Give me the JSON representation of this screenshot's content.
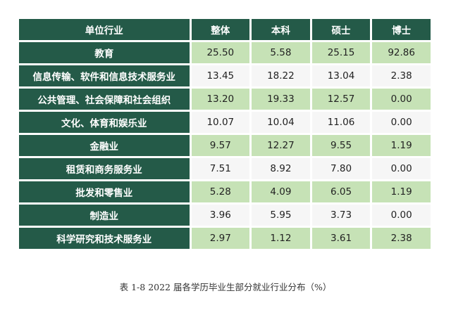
{
  "table": {
    "headers": [
      "单位行业",
      "整体",
      "本科",
      "硕士",
      "博士"
    ],
    "rows": [
      {
        "industry": "教育",
        "values": [
          "25.50",
          "5.58",
          "25.15",
          "92.86"
        ]
      },
      {
        "industry": "信息传输、软件和信息技术服务业",
        "values": [
          "13.45",
          "18.22",
          "13.04",
          "2.38"
        ]
      },
      {
        "industry": "公共管理、社会保障和社会组织",
        "values": [
          "13.20",
          "19.33",
          "12.57",
          "0.00"
        ]
      },
      {
        "industry": "文化、体育和娱乐业",
        "values": [
          "10.07",
          "10.04",
          "11.06",
          "0.00"
        ]
      },
      {
        "industry": "金融业",
        "values": [
          "9.57",
          "12.27",
          "9.55",
          "1.19"
        ]
      },
      {
        "industry": "租赁和商务服务业",
        "values": [
          "7.51",
          "8.92",
          "7.80",
          "0.00"
        ]
      },
      {
        "industry": "批发和零售业",
        "values": [
          "5.28",
          "4.09",
          "6.05",
          "1.19"
        ]
      },
      {
        "industry": "制造业",
        "values": [
          "3.96",
          "5.95",
          "3.73",
          "0.00"
        ]
      },
      {
        "industry": "科学研究和技术服务业",
        "values": [
          "2.97",
          "1.12",
          "3.61",
          "2.38"
        ]
      }
    ]
  },
  "caption": "表 1-8 2022 届各学历毕业生部分就业行业分布（%）",
  "colors": {
    "header_bg": "#245a48",
    "green_row": "#c6e2b6",
    "white_row": "#f6f6f6"
  }
}
